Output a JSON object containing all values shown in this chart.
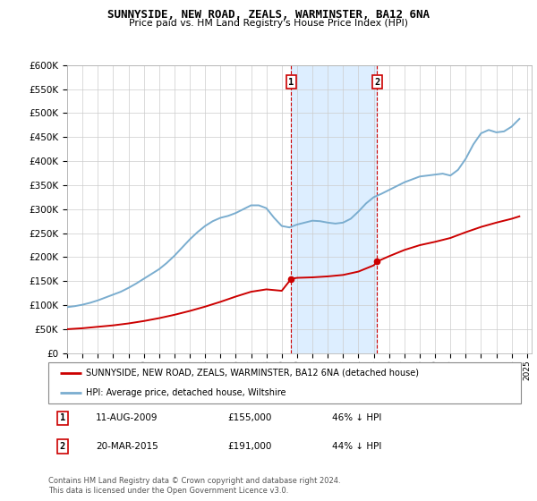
{
  "title": "SUNNYSIDE, NEW ROAD, ZEALS, WARMINSTER, BA12 6NA",
  "subtitle": "Price paid vs. HM Land Registry's House Price Index (HPI)",
  "legend_line1": "SUNNYSIDE, NEW ROAD, ZEALS, WARMINSTER, BA12 6NA (detached house)",
  "legend_line2": "HPI: Average price, detached house, Wiltshire",
  "annotation1_label": "1",
  "annotation1_date": "11-AUG-2009",
  "annotation1_price": "£155,000",
  "annotation1_hpi": "46% ↓ HPI",
  "annotation2_label": "2",
  "annotation2_date": "20-MAR-2015",
  "annotation2_price": "£191,000",
  "annotation2_hpi": "44% ↓ HPI",
  "footnote": "Contains HM Land Registry data © Crown copyright and database right 2024.\nThis data is licensed under the Open Government Licence v3.0.",
  "sale1_x": 2009.62,
  "sale1_y": 155000,
  "sale2_x": 2015.22,
  "sale2_y": 191000,
  "hpi_x": [
    1995.0,
    1995.5,
    1996.0,
    1996.5,
    1997.0,
    1997.5,
    1998.0,
    1998.5,
    1999.0,
    1999.5,
    2000.0,
    2000.5,
    2001.0,
    2001.5,
    2002.0,
    2002.5,
    2003.0,
    2003.5,
    2004.0,
    2004.5,
    2005.0,
    2005.5,
    2006.0,
    2006.5,
    2007.0,
    2007.5,
    2008.0,
    2008.5,
    2009.0,
    2009.5,
    2010.0,
    2010.5,
    2011.0,
    2011.5,
    2012.0,
    2012.5,
    2013.0,
    2013.5,
    2014.0,
    2014.5,
    2015.0,
    2015.5,
    2016.0,
    2016.5,
    2017.0,
    2017.5,
    2018.0,
    2018.5,
    2019.0,
    2019.5,
    2020.0,
    2020.5,
    2021.0,
    2021.5,
    2022.0,
    2022.5,
    2023.0,
    2023.5,
    2024.0,
    2024.5
  ],
  "hpi_y": [
    96000,
    98000,
    101000,
    105000,
    110000,
    116000,
    122000,
    128000,
    136000,
    145000,
    155000,
    165000,
    175000,
    188000,
    203000,
    220000,
    237000,
    252000,
    265000,
    275000,
    282000,
    286000,
    292000,
    300000,
    308000,
    308000,
    302000,
    282000,
    265000,
    262000,
    268000,
    272000,
    276000,
    275000,
    272000,
    270000,
    272000,
    280000,
    295000,
    312000,
    325000,
    332000,
    340000,
    348000,
    356000,
    362000,
    368000,
    370000,
    372000,
    374000,
    370000,
    382000,
    405000,
    435000,
    458000,
    465000,
    460000,
    462000,
    472000,
    488000
  ],
  "red_x": [
    1995.0,
    1996.0,
    1997.0,
    1998.0,
    1999.0,
    2000.0,
    2001.0,
    2002.0,
    2003.0,
    2004.0,
    2005.0,
    2006.0,
    2007.0,
    2008.0,
    2009.0,
    2009.62,
    2010.0,
    2011.0,
    2012.0,
    2013.0,
    2014.0,
    2015.0,
    2015.22,
    2016.0,
    2017.0,
    2018.0,
    2019.0,
    2020.0,
    2021.0,
    2022.0,
    2023.0,
    2024.0,
    2024.5
  ],
  "red_y": [
    50000,
    52000,
    55000,
    58000,
    62000,
    67000,
    73000,
    80000,
    88000,
    97000,
    107000,
    118000,
    128000,
    133000,
    130000,
    155000,
    157000,
    158000,
    160000,
    163000,
    170000,
    183000,
    191000,
    202000,
    215000,
    225000,
    232000,
    240000,
    252000,
    263000,
    272000,
    280000,
    285000
  ],
  "ylim": [
    0,
    600000
  ],
  "xlim": [
    1995,
    2025.3
  ],
  "red_color": "#cc0000",
  "blue_color": "#7aadcf",
  "vline_color": "#cc0000",
  "shaded_color": "#ddeeff",
  "background_color": "#ffffff",
  "grid_color": "#cccccc",
  "yticks": [
    0,
    50000,
    100000,
    150000,
    200000,
    250000,
    300000,
    350000,
    400000,
    450000,
    500000,
    550000,
    600000
  ]
}
